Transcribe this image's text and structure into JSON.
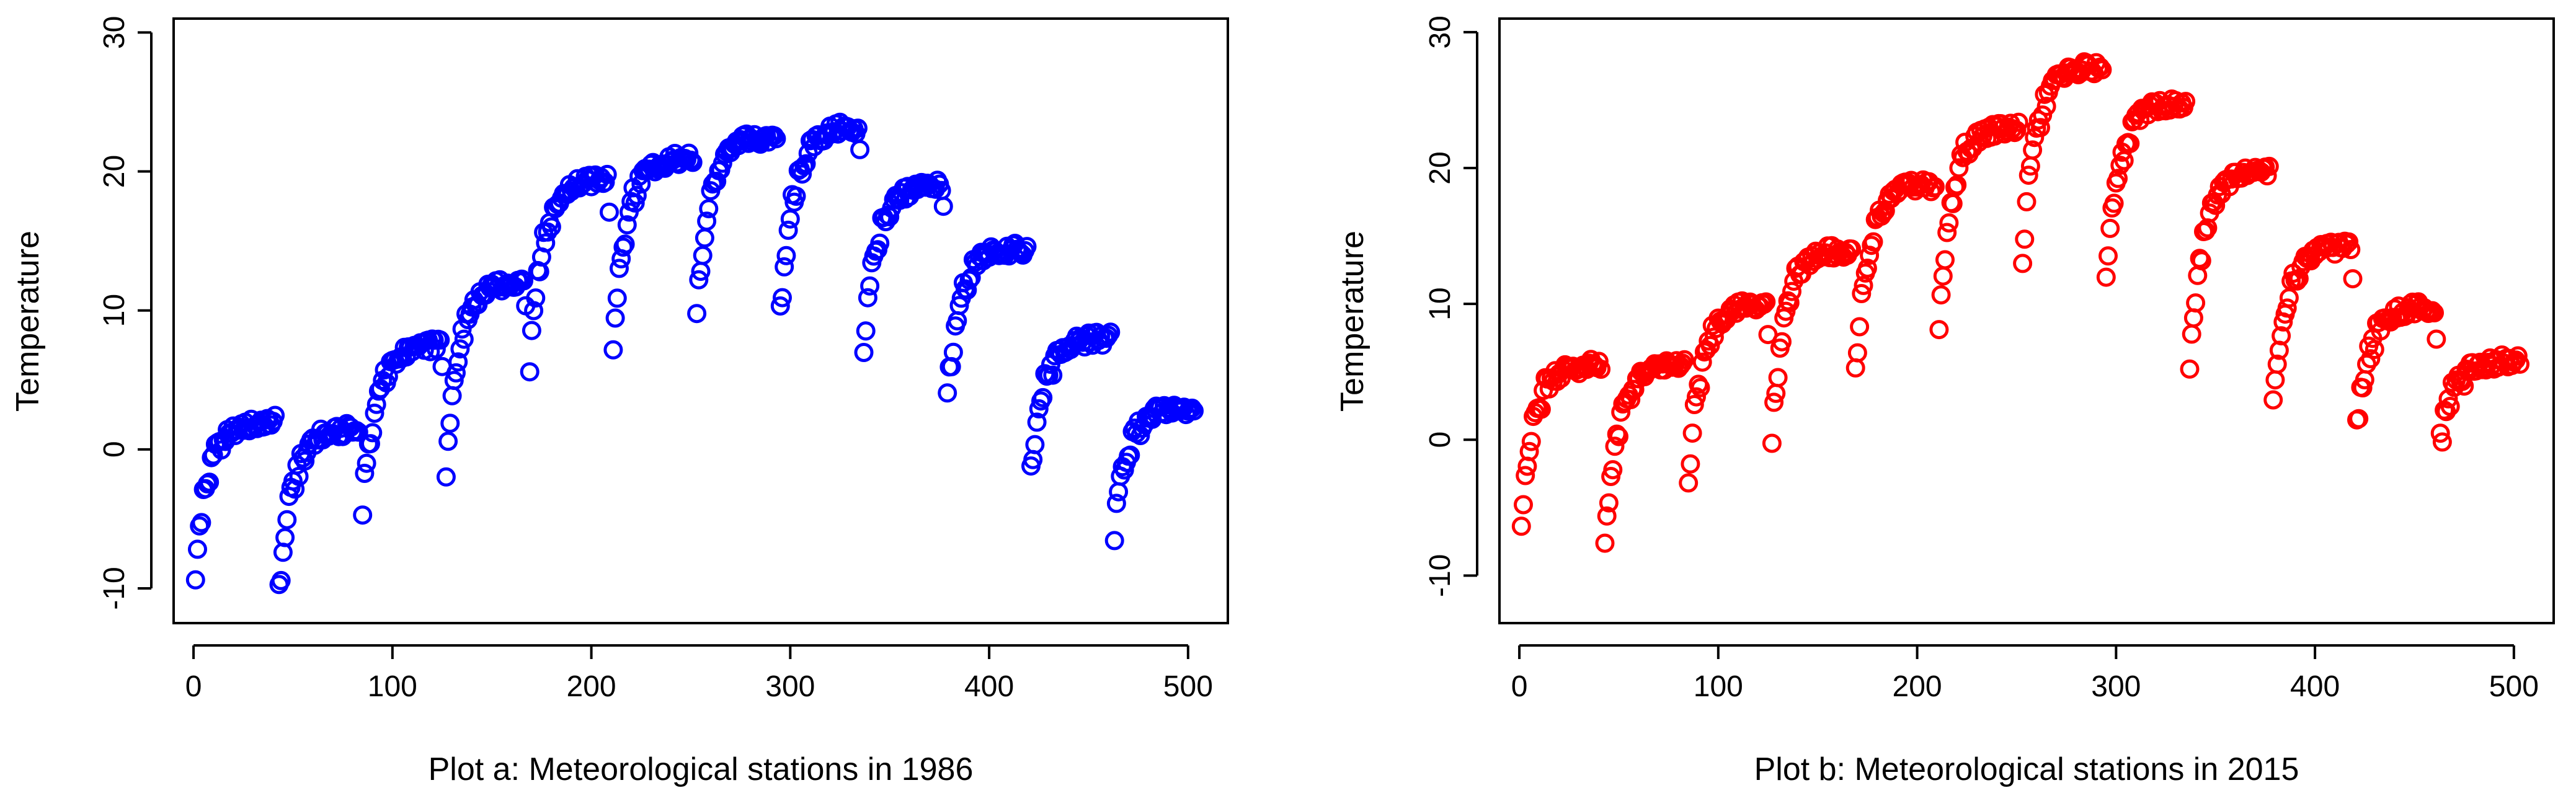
{
  "chart_data": [
    {
      "type": "scatter",
      "title": "Plot a: Meteorological stations in 1986",
      "xlabel": "Plot a: Meteorological stations in 1986",
      "ylabel": "Temperature",
      "xlim": [
        -10,
        520
      ],
      "ylim": [
        -12.5,
        31
      ],
      "xticks": [
        0,
        100,
        200,
        300,
        400,
        500
      ],
      "yticks": [
        -10,
        0,
        10,
        20,
        30
      ],
      "color": "#0000ff",
      "marker": "open-circle",
      "grid": false,
      "segments": [
        {
          "x0": 1,
          "x1": 41,
          "y0": -8.5,
          "plateau": 2.0
        },
        {
          "x0": 43,
          "x1": 83,
          "y0": -10.5,
          "plateau": 1.5
        },
        {
          "x0": 85,
          "x1": 125,
          "y0": -4.0,
          "plateau": 7.5
        },
        {
          "x0": 127,
          "x1": 167,
          "y0": -2.0,
          "plateau": 12.0
        },
        {
          "x0": 169,
          "x1": 209,
          "y0": 6.0,
          "plateau": 19.5
        },
        {
          "x0": 211,
          "x1": 251,
          "y0": 7.5,
          "plateau": 21.0
        },
        {
          "x0": 253,
          "x1": 293,
          "y0": 9.5,
          "plateau": 22.5
        },
        {
          "x0": 295,
          "x1": 335,
          "y0": 9.5,
          "plateau": 23.2
        },
        {
          "x0": 337,
          "x1": 377,
          "y0": 7.5,
          "plateau": 19.0
        },
        {
          "x0": 379,
          "x1": 419,
          "y0": 4.0,
          "plateau": 14.5
        },
        {
          "x0": 421,
          "x1": 461,
          "y0": -1.5,
          "plateau": 8.0
        },
        {
          "x0": 463,
          "x1": 503,
          "y0": -5.8,
          "plateau": 3.0
        }
      ]
    },
    {
      "type": "scatter",
      "title": "Plot b: Meteorological stations in 2015",
      "xlabel": "Plot b: Meteorological stations in 2015",
      "ylabel": "Temperature",
      "xlim": [
        -10,
        520
      ],
      "ylim": [
        -13.5,
        31
      ],
      "xticks": [
        0,
        100,
        200,
        300,
        400,
        500
      ],
      "yticks": [
        -10,
        0,
        10,
        20,
        30
      ],
      "color": "#ff0000",
      "marker": "open-circle",
      "grid": false,
      "segments": [
        {
          "x0": 1,
          "x1": 41,
          "y0": -5.5,
          "plateau": 5.5
        },
        {
          "x0": 43,
          "x1": 83,
          "y0": -7.0,
          "plateau": 5.5
        },
        {
          "x0": 85,
          "x1": 125,
          "y0": -3.0,
          "plateau": 10.0
        },
        {
          "x0": 127,
          "x1": 167,
          "y0": 0.5,
          "plateau": 14.0
        },
        {
          "x0": 169,
          "x1": 209,
          "y0": 5.0,
          "plateau": 18.8
        },
        {
          "x0": 211,
          "x1": 251,
          "y0": 9.0,
          "plateau": 23.0
        },
        {
          "x0": 253,
          "x1": 293,
          "y0": 13.5,
          "plateau": 27.5
        },
        {
          "x0": 295,
          "x1": 335,
          "y0": 11.5,
          "plateau": 24.8
        },
        {
          "x0": 337,
          "x1": 377,
          "y0": 5.5,
          "plateau": 19.8
        },
        {
          "x0": 379,
          "x1": 419,
          "y0": 2.5,
          "plateau": 14.2
        },
        {
          "x0": 421,
          "x1": 461,
          "y0": 1.0,
          "plateau": 9.8
        },
        {
          "x0": 463,
          "x1": 503,
          "y0": -0.3,
          "plateau": 5.8
        }
      ]
    }
  ]
}
